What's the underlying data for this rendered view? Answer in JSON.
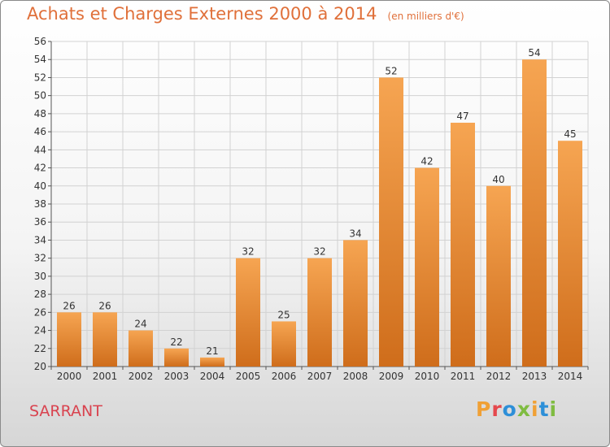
{
  "header": {
    "title": "Achats et Charges Externes 2000 à 2014",
    "unit": "(en milliers d'€)"
  },
  "footer": {
    "commune": "SARRANT",
    "brand": "Proxiti"
  },
  "colors": {
    "bar_light": "#f6a552",
    "bar_dark": "#cf6d1b",
    "grid": "#d2d2d2",
    "title": "#e0703a",
    "commune": "#d9434f",
    "brand_letters": [
      "#f0a035",
      "#e5484d",
      "#2d8fd8",
      "#7fbc41",
      "#f0a035",
      "#2d8fd8",
      "#7fbc41"
    ]
  },
  "chart_data": {
    "type": "bar",
    "title": "Achats et Charges Externes 2000 à 2014",
    "subtitle": "(en milliers d'€)",
    "categories": [
      "2000",
      "2001",
      "2002",
      "2003",
      "2004",
      "2005",
      "2006",
      "2007",
      "2008",
      "2009",
      "2010",
      "2011",
      "2012",
      "2013",
      "2014"
    ],
    "values": [
      26,
      26,
      24,
      22,
      21,
      32,
      25,
      32,
      34,
      52,
      42,
      47,
      40,
      54,
      45
    ],
    "ylim": [
      20,
      56
    ],
    "yticks": [
      20,
      22,
      24,
      26,
      28,
      30,
      32,
      34,
      36,
      38,
      40,
      42,
      44,
      46,
      48,
      50,
      52,
      54,
      56
    ],
    "grid": true,
    "legend": "none"
  }
}
